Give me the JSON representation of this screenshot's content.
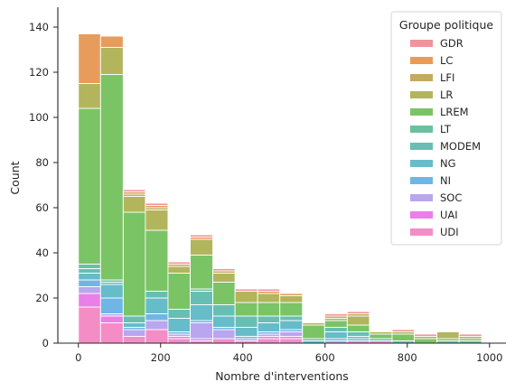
{
  "chart_data": {
    "type": "bar",
    "stacked": true,
    "xlabel": "Nombre d'interventions",
    "ylabel": "Count",
    "xlim": [
      -50,
      1040
    ],
    "ylim": [
      0,
      148
    ],
    "x_ticks": [
      0,
      200,
      400,
      600,
      800,
      1000
    ],
    "y_ticks": [
      0,
      20,
      40,
      60,
      80,
      100,
      120,
      140
    ],
    "grid": false,
    "legend": {
      "title": "Groupe politique",
      "position": "top-right"
    },
    "bins": [
      [
        0,
        54
      ],
      [
        54,
        109
      ],
      [
        109,
        163
      ],
      [
        163,
        218
      ],
      [
        218,
        272
      ],
      [
        272,
        327
      ],
      [
        327,
        381
      ],
      [
        381,
        436
      ],
      [
        436,
        490
      ],
      [
        490,
        545
      ],
      [
        545,
        599
      ],
      [
        599,
        654
      ],
      [
        654,
        708
      ],
      [
        708,
        763
      ],
      [
        763,
        817
      ],
      [
        817,
        872
      ],
      [
        872,
        926
      ],
      [
        926,
        981
      ]
    ],
    "series": [
      {
        "name": "GDR",
        "color": "#f2929d",
        "values": [
          0,
          0,
          1,
          1,
          1,
          1,
          1,
          1,
          1,
          0,
          0,
          1,
          1,
          0,
          1,
          1,
          0,
          1
        ]
      },
      {
        "name": "LC",
        "color": "#e89c5c",
        "values": [
          22,
          5,
          1,
          1,
          0,
          1,
          0,
          0,
          1,
          1,
          0,
          0,
          0,
          0,
          0,
          0,
          0,
          0
        ]
      },
      {
        "name": "LFI",
        "color": "#c6aa61",
        "values": [
          0,
          0,
          1,
          1,
          1,
          0,
          1,
          0,
          0,
          0,
          0,
          1,
          1,
          0,
          0,
          0,
          0,
          0
        ]
      },
      {
        "name": "LR",
        "color": "#b2b55c",
        "values": [
          11,
          12,
          7,
          9,
          3,
          7,
          4,
          5,
          4,
          3,
          1,
          1,
          4,
          1,
          1,
          1,
          3,
          1
        ]
      },
      {
        "name": "LREM",
        "color": "#7bc465",
        "values": [
          69,
          91,
          46,
          27,
          16,
          15,
          10,
          6,
          6,
          6,
          6,
          3,
          3,
          2,
          3,
          2,
          1,
          1
        ]
      },
      {
        "name": "LT",
        "color": "#67c29f",
        "values": [
          2,
          1,
          0,
          0,
          0,
          1,
          0,
          0,
          0,
          0,
          0,
          0,
          0,
          0,
          0,
          0,
          0,
          0
        ]
      },
      {
        "name": "MODEM",
        "color": "#67bfb3",
        "values": [
          2,
          1,
          3,
          3,
          4,
          6,
          5,
          5,
          3,
          2,
          1,
          2,
          2,
          1,
          1,
          0,
          1,
          1
        ]
      },
      {
        "name": "NG",
        "color": "#66bcc8",
        "values": [
          3,
          6,
          2,
          7,
          6,
          7,
          5,
          4,
          4,
          4,
          1,
          3,
          1,
          0,
          0,
          0,
          0,
          0
        ]
      },
      {
        "name": "NI",
        "color": "#6fb6e6",
        "values": [
          3,
          7,
          1,
          3,
          1,
          1,
          1,
          1,
          1,
          1,
          0,
          1,
          1,
          0,
          0,
          0,
          0,
          0
        ]
      },
      {
        "name": "SOC",
        "color": "#b9a6ef",
        "values": [
          3,
          1,
          3,
          4,
          1,
          7,
          4,
          1,
          1,
          2,
          0,
          1,
          0,
          0,
          0,
          0,
          0,
          0
        ]
      },
      {
        "name": "UAI",
        "color": "#ea7fea",
        "values": [
          6,
          3,
          0,
          0,
          1,
          1,
          0,
          0,
          1,
          1,
          0,
          0,
          0,
          0,
          0,
          0,
          0,
          0
        ]
      },
      {
        "name": "UDI",
        "color": "#f48dc6",
        "values": [
          16,
          9,
          3,
          6,
          2,
          1,
          2,
          1,
          2,
          2,
          0,
          0,
          1,
          1,
          0,
          0,
          0,
          0
        ]
      }
    ]
  }
}
